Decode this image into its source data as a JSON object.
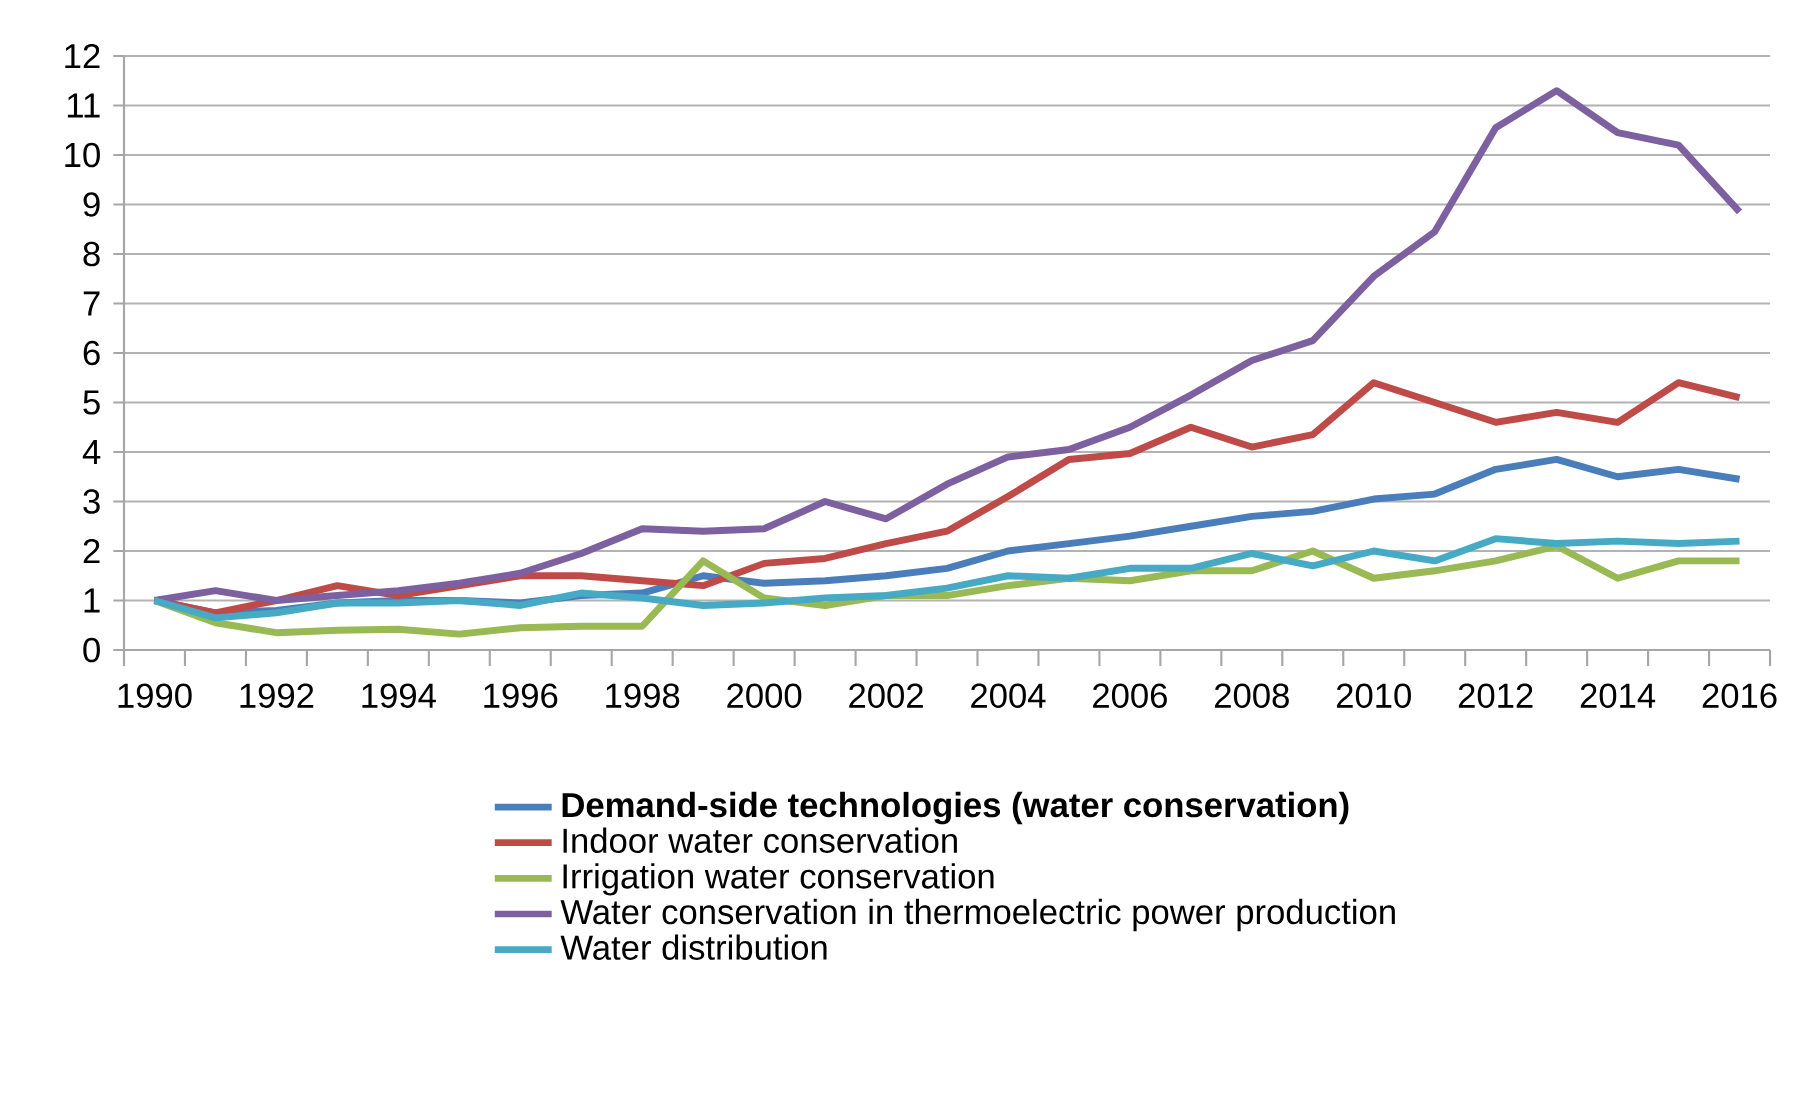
{
  "chart_data": {
    "type": "line",
    "categories": [
      "1990",
      null,
      "1992",
      null,
      "1994",
      null,
      "1996",
      null,
      "1998",
      null,
      "2000",
      null,
      "2002",
      null,
      "2004",
      null,
      "2006",
      null,
      "2008",
      null,
      "2010",
      null,
      "2012",
      null,
      "2014",
      null,
      "2016"
    ],
    "series": [
      {
        "name": "**Demand-side technologies (water conservation)**",
        "color": "#4a7ebb",
        "values": [
          1,
          0.75,
          0.8,
          0.95,
          1.0,
          1.0,
          0.95,
          1.1,
          1.15,
          1.5,
          1.35,
          1.4,
          1.5,
          1.65,
          2.0,
          2.15,
          2.3,
          2.5,
          2.7,
          2.8,
          3.05,
          3.15,
          3.65,
          3.85,
          3.5,
          3.65,
          3.45
        ]
      },
      {
        "name": "Indoor water conservation",
        "color": "#be4b48",
        "values": [
          1,
          0.75,
          1.0,
          1.3,
          1.1,
          1.3,
          1.5,
          1.5,
          1.4,
          1.3,
          1.75,
          1.85,
          2.15,
          2.4,
          3.1,
          3.85,
          3.97,
          4.5,
          4.1,
          4.35,
          5.4,
          5.0,
          4.6,
          4.8,
          4.6,
          5.4,
          5.1
        ]
      },
      {
        "name": "Irrigation water conservation",
        "color": "#98b954",
        "values": [
          1,
          0.55,
          0.35,
          0.4,
          0.42,
          0.32,
          0.45,
          0.48,
          0.48,
          1.8,
          1.05,
          0.9,
          1.1,
          1.1,
          1.3,
          1.45,
          1.4,
          1.6,
          1.6,
          2.0,
          1.45,
          1.6,
          1.8,
          2.1,
          1.45,
          1.8,
          1.8
        ]
      },
      {
        "name": "Water conservation in thermoelectric power production",
        "color": "#7d60a0",
        "values": [
          1,
          1.2,
          1.0,
          1.1,
          1.2,
          1.35,
          1.55,
          1.95,
          2.45,
          2.4,
          2.45,
          3.0,
          2.65,
          3.35,
          3.9,
          4.05,
          4.5,
          5.15,
          5.85,
          6.25,
          7.55,
          8.45,
          10.55,
          11.3,
          10.45,
          10.2,
          8.85
        ]
      },
      {
        "name": "Water distribution",
        "color": "#46aac5",
        "values": [
          1,
          0.65,
          0.75,
          0.95,
          0.95,
          1.0,
          0.9,
          1.15,
          1.05,
          0.9,
          0.95,
          1.05,
          1.1,
          1.25,
          1.5,
          1.45,
          1.65,
          1.65,
          1.95,
          1.7,
          2.0,
          1.8,
          2.25,
          2.15,
          2.2,
          2.15,
          2.2
        ]
      }
    ],
    "ylim": [
      0,
      12
    ],
    "yticks": [
      0,
      1,
      2,
      3,
      4,
      5,
      6,
      7,
      8,
      9,
      10,
      11,
      12
    ],
    "grid": "y",
    "legend": "bottom",
    "marker": "none",
    "line_style": "solid"
  }
}
